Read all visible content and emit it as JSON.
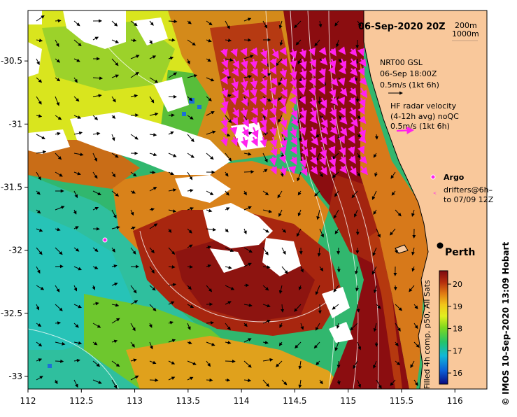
{
  "title": "06-Sep-2020 20Z",
  "depth_legend": [
    "200m",
    "1000m"
  ],
  "model_legend": [
    "NRT00 GSL",
    "06-Sep 18:00Z",
    "0.5m/s (1kt 6h)"
  ],
  "radar_legend": [
    "HF radar velocity",
    "(4-12h avg) noQC",
    "0.5m/s (1kt 6h)"
  ],
  "argo_label": "Argo",
  "drifters_legend": [
    "drifters@6h–",
    "to 07/09 12Z"
  ],
  "city_label": "Perth",
  "colorbar_title": "Filled 4h comp, p50, All Sats",
  "credit": "©  IMOS 10-Sep-2020 13:09 Hobart",
  "colors": {
    "land": "#f9c89b",
    "deep_red": "#8b0d10",
    "radar_arrow": "#ff22ee"
  },
  "chart_data": {
    "type": "heatmap",
    "variable": "sea surface temperature",
    "x_ticks": [
      "112",
      "112.5",
      "113",
      "113.5",
      "114",
      "114.5",
      "115",
      "115.5",
      "116"
    ],
    "y_ticks": [
      "-30.5",
      "-31",
      "-31.5",
      "-32",
      "-32.5",
      "-33"
    ],
    "x_range": [
      112,
      116.3
    ],
    "y_range": [
      -33.1,
      -30.1
    ],
    "colorbar_ticks": [
      "20",
      "19",
      "18",
      "17",
      "16"
    ],
    "colorbar_range": [
      15.5,
      20.6
    ],
    "argo_position": [
      112.73,
      -31.9
    ],
    "perth_position": [
      115.86,
      -31.95
    ]
  }
}
